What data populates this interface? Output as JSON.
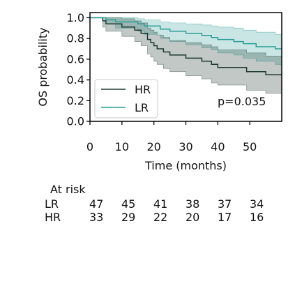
{
  "chart_data": {
    "type": "line",
    "subtype": "kaplan-meier",
    "ylabel": "OS probability",
    "xlabel": "Time (months)",
    "xlim": [
      0,
      60
    ],
    "ylim": [
      0,
      1.05
    ],
    "xticks": [
      0,
      10,
      20,
      30,
      40,
      50
    ],
    "yticks": [
      "0.0",
      "0.2",
      "0.4",
      "0.6",
      "0.8",
      "1.0"
    ],
    "grid": false,
    "legend_position": "lower-left",
    "annotation": "p=0.035",
    "series": [
      {
        "name": "HR",
        "color": "#1f3a32",
        "steps": [
          [
            0,
            1.0
          ],
          [
            4,
            0.97
          ],
          [
            5,
            0.94
          ],
          [
            10,
            0.91
          ],
          [
            14,
            0.88
          ],
          [
            16,
            0.85
          ],
          [
            18,
            0.79
          ],
          [
            19,
            0.76
          ],
          [
            20,
            0.73
          ],
          [
            21,
            0.7
          ],
          [
            23,
            0.67
          ],
          [
            25,
            0.64
          ],
          [
            30,
            0.61
          ],
          [
            35,
            0.58
          ],
          [
            38,
            0.55
          ],
          [
            40,
            0.52
          ],
          [
            49,
            0.48
          ],
          [
            55,
            0.45
          ],
          [
            60,
            0.45
          ]
        ],
        "ci_lower": [
          [
            0,
            1.0
          ],
          [
            4,
            0.91
          ],
          [
            5,
            0.87
          ],
          [
            10,
            0.82
          ],
          [
            14,
            0.77
          ],
          [
            16,
            0.73
          ],
          [
            18,
            0.65
          ],
          [
            19,
            0.62
          ],
          [
            20,
            0.58
          ],
          [
            21,
            0.55
          ],
          [
            23,
            0.51
          ],
          [
            25,
            0.48
          ],
          [
            30,
            0.44
          ],
          [
            35,
            0.41
          ],
          [
            38,
            0.37
          ],
          [
            40,
            0.35
          ],
          [
            49,
            0.3
          ],
          [
            55,
            0.27
          ],
          [
            60,
            0.27
          ]
        ],
        "ci_upper": [
          [
            0,
            1.0
          ],
          [
            4,
            1.0
          ],
          [
            5,
            1.0
          ],
          [
            10,
            0.99
          ],
          [
            14,
            0.97
          ],
          [
            16,
            0.95
          ],
          [
            18,
            0.9
          ],
          [
            19,
            0.88
          ],
          [
            20,
            0.86
          ],
          [
            21,
            0.83
          ],
          [
            23,
            0.81
          ],
          [
            25,
            0.78
          ],
          [
            30,
            0.76
          ],
          [
            35,
            0.74
          ],
          [
            38,
            0.72
          ],
          [
            40,
            0.69
          ],
          [
            49,
            0.66
          ],
          [
            55,
            0.63
          ],
          [
            60,
            0.63
          ]
        ]
      },
      {
        "name": "LR",
        "color": "#2a9d95",
        "steps": [
          [
            0,
            1.0
          ],
          [
            5,
            0.98
          ],
          [
            8,
            0.96
          ],
          [
            15,
            0.94
          ],
          [
            17,
            0.92
          ],
          [
            22,
            0.89
          ],
          [
            25,
            0.87
          ],
          [
            30,
            0.85
          ],
          [
            35,
            0.83
          ],
          [
            38,
            0.81
          ],
          [
            40,
            0.79
          ],
          [
            45,
            0.77
          ],
          [
            48,
            0.75
          ],
          [
            52,
            0.72
          ],
          [
            58,
            0.7
          ],
          [
            60,
            0.7
          ]
        ],
        "ci_lower": [
          [
            0,
            1.0
          ],
          [
            5,
            0.94
          ],
          [
            8,
            0.9
          ],
          [
            15,
            0.87
          ],
          [
            17,
            0.84
          ],
          [
            22,
            0.8
          ],
          [
            25,
            0.77
          ],
          [
            30,
            0.74
          ],
          [
            35,
            0.71
          ],
          [
            38,
            0.69
          ],
          [
            40,
            0.66
          ],
          [
            45,
            0.64
          ],
          [
            48,
            0.61
          ],
          [
            52,
            0.58
          ],
          [
            58,
            0.55
          ],
          [
            60,
            0.55
          ]
        ],
        "ci_upper": [
          [
            0,
            1.0
          ],
          [
            5,
            1.0
          ],
          [
            8,
            1.0
          ],
          [
            15,
            0.99
          ],
          [
            17,
            0.98
          ],
          [
            22,
            0.96
          ],
          [
            25,
            0.95
          ],
          [
            30,
            0.94
          ],
          [
            35,
            0.93
          ],
          [
            38,
            0.92
          ],
          [
            40,
            0.91
          ],
          [
            45,
            0.9
          ],
          [
            48,
            0.88
          ],
          [
            52,
            0.86
          ],
          [
            58,
            0.84
          ],
          [
            60,
            0.84
          ]
        ]
      }
    ]
  },
  "at_risk": {
    "title": "At risk",
    "rows": [
      {
        "label": "LR",
        "values": [
          "47",
          "45",
          "41",
          "38",
          "37",
          "34"
        ]
      },
      {
        "label": "HR",
        "values": [
          "33",
          "29",
          "22",
          "20",
          "17",
          "16"
        ]
      }
    ]
  }
}
